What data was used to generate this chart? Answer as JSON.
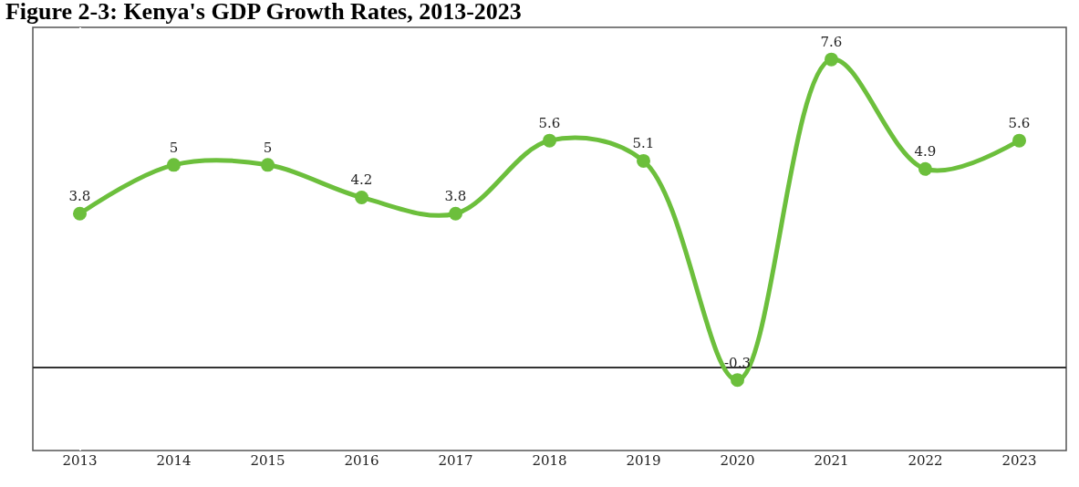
{
  "chart_data": {
    "type": "line",
    "title": "Figure 2-3: Kenya's GDP Growth Rates, 2013-2023",
    "categories": [
      "2013",
      "2014",
      "2015",
      "2016",
      "2017",
      "2018",
      "2019",
      "2020",
      "2021",
      "2022",
      "2023"
    ],
    "series": [
      {
        "color": "#6cbf3c",
        "values": [
          3.8,
          5,
          5,
          4.2,
          3.8,
          5.6,
          5.1,
          -0.3,
          7.6,
          4.9,
          5.6
        ]
      }
    ],
    "data_labels": true,
    "marker": "circle",
    "line_style": "solid",
    "legend": false
  }
}
